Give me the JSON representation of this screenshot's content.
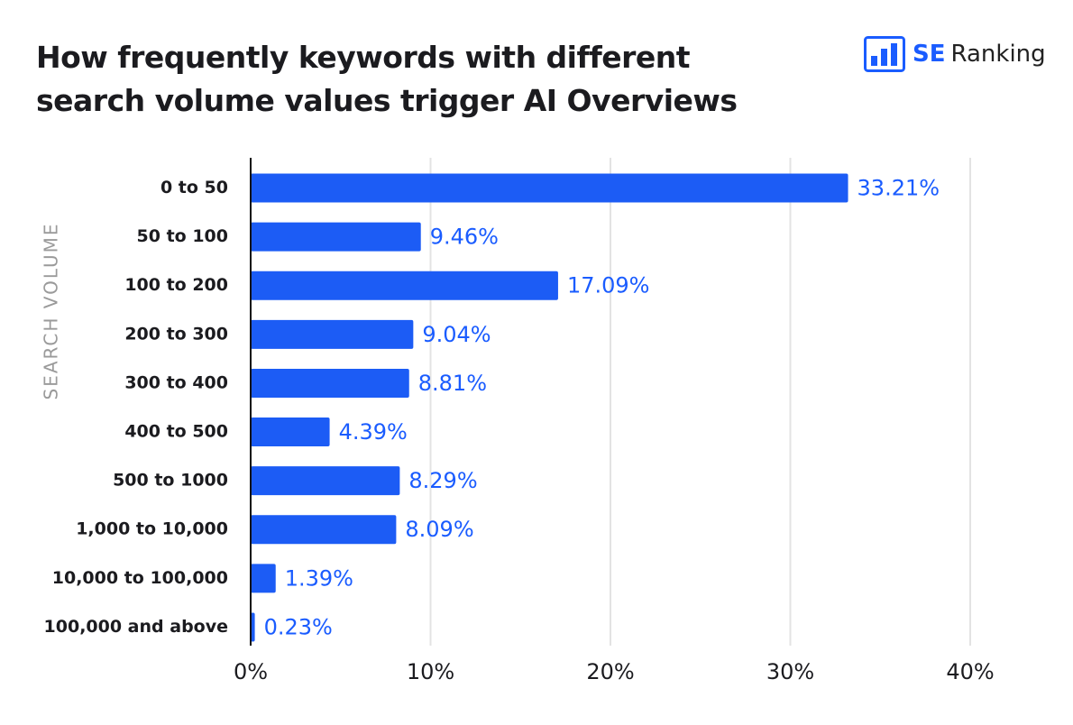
{
  "logo": {
    "brand": "SE",
    "name": "Ranking"
  },
  "chart_data": {
    "type": "hbar",
    "title": "How frequently keywords with different search volume values trigger AI Overviews",
    "y_label": "SEARCH VOLUME",
    "categories": [
      "0 to 50",
      "50 to 100",
      "100 to 200",
      "200 to 300",
      "300 to 400",
      "400 to 500",
      "500 to 1000",
      "1,000 to 10,000",
      "10,000 to 100,000",
      "100,000 and above"
    ],
    "values": [
      33.21,
      9.46,
      17.09,
      9.04,
      8.81,
      4.39,
      8.29,
      8.09,
      1.39,
      0.23
    ],
    "value_labels": [
      "33.21%",
      "9.46%",
      "17.09%",
      "9.04%",
      "8.81%",
      "4.39%",
      "8.29%",
      "8.09%",
      "1.39%",
      "0.23%"
    ],
    "color": "#1c5cf5",
    "label_color": "#1a5cff",
    "xlim": [
      0,
      40
    ],
    "xticks": [
      {
        "value": 0,
        "label": "0%"
      },
      {
        "value": 10,
        "label": "10%"
      },
      {
        "value": 20,
        "label": "20%"
      },
      {
        "value": 30,
        "label": "30%"
      },
      {
        "value": 40,
        "label": "40%"
      }
    ],
    "grid": true
  }
}
